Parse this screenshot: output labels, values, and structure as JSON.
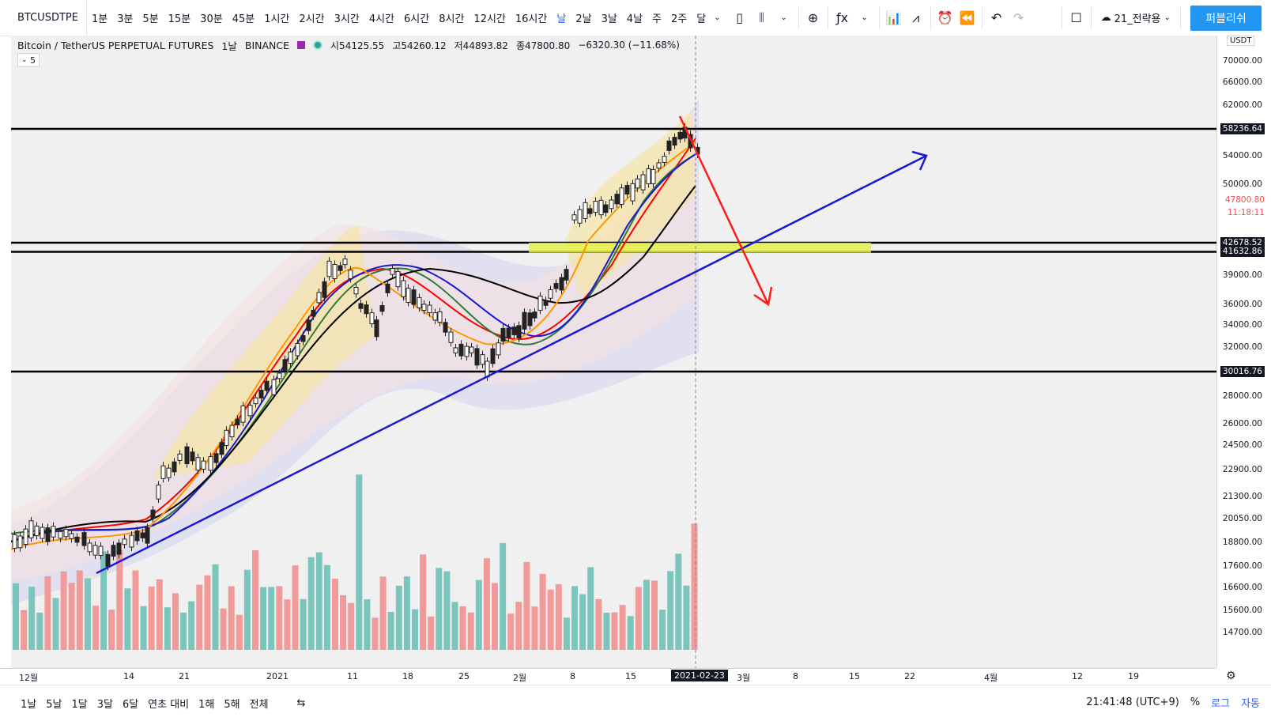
{
  "toolbar": {
    "symbol": "BTCUSDTPE",
    "timeframes": [
      "1분",
      "3분",
      "5분",
      "15분",
      "30분",
      "45분",
      "1시간",
      "2시간",
      "3시간",
      "4시간",
      "6시간",
      "8시간",
      "12시간",
      "16시간",
      "날",
      "2날",
      "3날",
      "4날",
      "주",
      "2주",
      "달"
    ],
    "active_timeframe": "날",
    "layout_name": "21_전략용",
    "publish_label": "퍼블리쉬"
  },
  "legend": {
    "title": "Bitcoin / TetherUS PERPETUAL FUTURES",
    "interval": "1날",
    "exchange": "BINANCE",
    "open": "시54125.55",
    "high": "고54260.12",
    "low": "저44893.82",
    "close": "종47800.80",
    "change": "−6320.30 (−11.68%)",
    "collapse_count": "5"
  },
  "price_scale": {
    "currency": "USDT",
    "ticks": [
      {
        "label": "70000.00",
        "v": 70000
      },
      {
        "label": "66000.00",
        "v": 66000
      },
      {
        "label": "62000.00",
        "v": 62000
      },
      {
        "label": "54000.00",
        "v": 54000
      },
      {
        "label": "50000.00",
        "v": 50000
      },
      {
        "label": "39000.00",
        "v": 39000
      },
      {
        "label": "36000.00",
        "v": 36000
      },
      {
        "label": "34000.00",
        "v": 34000
      },
      {
        "label": "32000.00",
        "v": 32000
      },
      {
        "label": "28000.00",
        "v": 28000
      },
      {
        "label": "26000.00",
        "v": 26000
      },
      {
        "label": "24500.00",
        "v": 24500
      },
      {
        "label": "22900.00",
        "v": 22900
      },
      {
        "label": "21300.00",
        "v": 21300
      },
      {
        "label": "20050.00",
        "v": 20050
      },
      {
        "label": "18800.00",
        "v": 18800
      },
      {
        "label": "17600.00",
        "v": 17600
      },
      {
        "label": "16600.00",
        "v": 16600
      },
      {
        "label": "15600.00",
        "v": 15600
      },
      {
        "label": "14700.00",
        "v": 14700
      }
    ],
    "level_labels": [
      {
        "label": "58236.64",
        "v": 58236.64
      },
      {
        "label": "42678.52",
        "v": 42678.52
      },
      {
        "label": "41632.86",
        "v": 41632.86
      },
      {
        "label": "30016.76",
        "v": 30016.76
      }
    ],
    "last_price": "47800.80",
    "countdown": "11:18:11"
  },
  "time_scale": {
    "ticks": [
      "12월",
      "14",
      "21",
      "2021",
      "11",
      "18",
      "25",
      "2월",
      "8",
      "15",
      "3월",
      "8",
      "15",
      "22",
      "4월",
      "12",
      "19"
    ],
    "cursor_date": "2021-02-23"
  },
  "bottom": {
    "ranges": [
      "1날",
      "5날",
      "1달",
      "3달",
      "6달",
      "연초 대비",
      "1해",
      "5해",
      "전체"
    ],
    "clock": "21:41:48 (UTC+9)",
    "percent": "%",
    "log": "로그",
    "auto": "자동"
  },
  "chart_data": {
    "type": "candlestick",
    "title": "Bitcoin / TetherUS PERPETUAL FUTURES",
    "scale": "log",
    "horizontal_levels": [
      58236.64,
      42678.52,
      41632.86,
      30016.76
    ],
    "highlight_zone": [
      41632.86,
      42678.52
    ],
    "annotations": [
      "blue rising trendline",
      "red down arrow from ~58000 to ~36000"
    ],
    "candles_approx": [
      {
        "date": "2020-12-01",
        "o": 18900,
        "c": 19200
      },
      {
        "date": "2020-12-16",
        "o": 19400,
        "c": 21300
      },
      {
        "date": "2020-12-21",
        "o": 23500,
        "c": 23000
      },
      {
        "date": "2020-12-27",
        "o": 26500,
        "c": 27000
      },
      {
        "date": "2021-01-01",
        "o": 29000,
        "c": 32000
      },
      {
        "date": "2021-01-08",
        "o": 39500,
        "c": 40500
      },
      {
        "date": "2021-01-11",
        "o": 38000,
        "c": 35500
      },
      {
        "date": "2021-01-21",
        "o": 34500,
        "c": 31500
      },
      {
        "date": "2021-01-27",
        "o": 30500,
        "c": 33000
      },
      {
        "date": "2021-02-04",
        "o": 37500,
        "c": 38500
      },
      {
        "date": "2021-02-08",
        "o": 38900,
        "c": 46400
      },
      {
        "date": "2021-02-15",
        "o": 48500,
        "c": 49500
      },
      {
        "date": "2021-02-21",
        "o": 57500,
        "c": 57000
      },
      {
        "date": "2021-02-22",
        "o": 57000,
        "c": 54125
      },
      {
        "date": "2021-02-23",
        "o": 54125.55,
        "h": 54260.12,
        "l": 44893.82,
        "c": 47800.8
      }
    ]
  }
}
